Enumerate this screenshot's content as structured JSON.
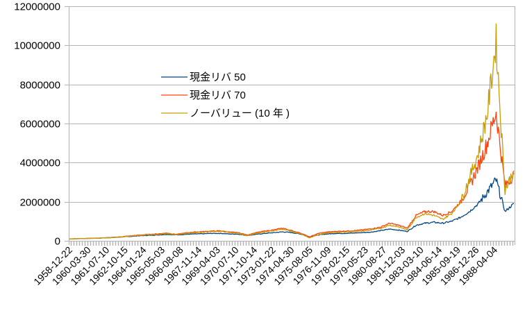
{
  "chart_data": {
    "type": "line",
    "title": "",
    "xlabel": "",
    "ylabel": "",
    "ylim": [
      0,
      12000000
    ],
    "yticks": [
      0,
      2000000,
      4000000,
      6000000,
      8000000,
      10000000,
      12000000
    ],
    "ytick_labels": [
      "0",
      "2000000",
      "4000000",
      "6000000",
      "8000000",
      "10000000",
      "12000000"
    ],
    "grid": true,
    "legend_position": "inside-upper-left-center",
    "x_tick_labels": [
      "1958-12-22",
      "1960-03-30",
      "1961-07-10",
      "1962-10-15",
      "1964-01-24",
      "1965-05-03",
      "1966-08-08",
      "1967-11-14",
      "1969-04-03",
      "1970-07-10",
      "1971-10-14",
      "1973-01-22",
      "1974-04-30",
      "1975-08-05",
      "1976-11-09",
      "1978-02-15",
      "1979-05-23",
      "1980-08-27",
      "1981-12-03",
      "1983-03-10",
      "1984-06-14",
      "1985-09-19",
      "1986-12-26",
      "1988-04-04"
    ],
    "x": [
      0,
      1,
      2,
      3,
      4,
      5,
      6,
      7,
      8,
      9,
      10,
      11,
      12,
      13,
      14,
      15,
      16,
      17,
      18,
      19,
      20,
      21,
      22,
      23,
      24,
      25,
      26,
      27,
      28,
      29,
      30,
      31,
      32,
      33,
      34,
      35,
      36,
      37,
      38,
      39,
      40,
      41,
      42,
      43,
      44,
      45,
      46,
      47,
      48,
      49,
      50
    ],
    "series": [
      {
        "name": "現金リバ 50",
        "color": "#004586",
        "values": [
          100000,
          110000,
          120000,
          130000,
          150000,
          170000,
          200000,
          230000,
          260000,
          280000,
          300000,
          330000,
          300000,
          330000,
          350000,
          360000,
          380000,
          380000,
          350000,
          340000,
          270000,
          330000,
          380000,
          420000,
          460000,
          420000,
          350000,
          200000,
          300000,
          350000,
          380000,
          380000,
          400000,
          420000,
          450000,
          520000,
          600000,
          550000,
          480000,
          800000,
          900000,
          950000,
          900000,
          1000000,
          1200000,
          1500000,
          1900000,
          2500000,
          3100000,
          1500000,
          1900000
        ]
      },
      {
        "name": "現金リバ 70",
        "color": "#ff420e",
        "values": [
          100000,
          110000,
          130000,
          140000,
          160000,
          180000,
          220000,
          260000,
          300000,
          330000,
          360000,
          400000,
          330000,
          400000,
          450000,
          470000,
          500000,
          510000,
          450000,
          420000,
          300000,
          420000,
          500000,
          560000,
          650000,
          520000,
          400000,
          200000,
          380000,
          450000,
          480000,
          500000,
          520000,
          560000,
          620000,
          700000,
          900000,
          800000,
          650000,
          1300000,
          1500000,
          1500000,
          1300000,
          1500000,
          2000000,
          2800000,
          3800000,
          5000000,
          6600000,
          2800000,
          3400000
        ]
      },
      {
        "name": "ノーバリュー (10 年 )",
        "color": "#c99c00",
        "values": [
          100000,
          110000,
          125000,
          135000,
          155000,
          175000,
          210000,
          245000,
          280000,
          310000,
          330000,
          370000,
          310000,
          370000,
          420000,
          440000,
          470000,
          480000,
          420000,
          390000,
          260000,
          380000,
          460000,
          520000,
          600000,
          480000,
          360000,
          150000,
          320000,
          400000,
          430000,
          450000,
          470000,
          500000,
          560000,
          640000,
          800000,
          720000,
          560000,
          1200000,
          1400000,
          1300000,
          1100000,
          1400000,
          2000000,
          3200000,
          4500000,
          6500000,
          10200000,
          2600000,
          3600000
        ]
      }
    ]
  },
  "legend": {
    "items": [
      {
        "label": "現金リバ 50",
        "color": "#004586"
      },
      {
        "label": "現金リバ 70",
        "color": "#ff420e"
      },
      {
        "label": "ノーバリュー (10 年 )",
        "color": "#c99c00"
      }
    ]
  },
  "axis": {
    "grid_color": "#b3b3b3"
  }
}
